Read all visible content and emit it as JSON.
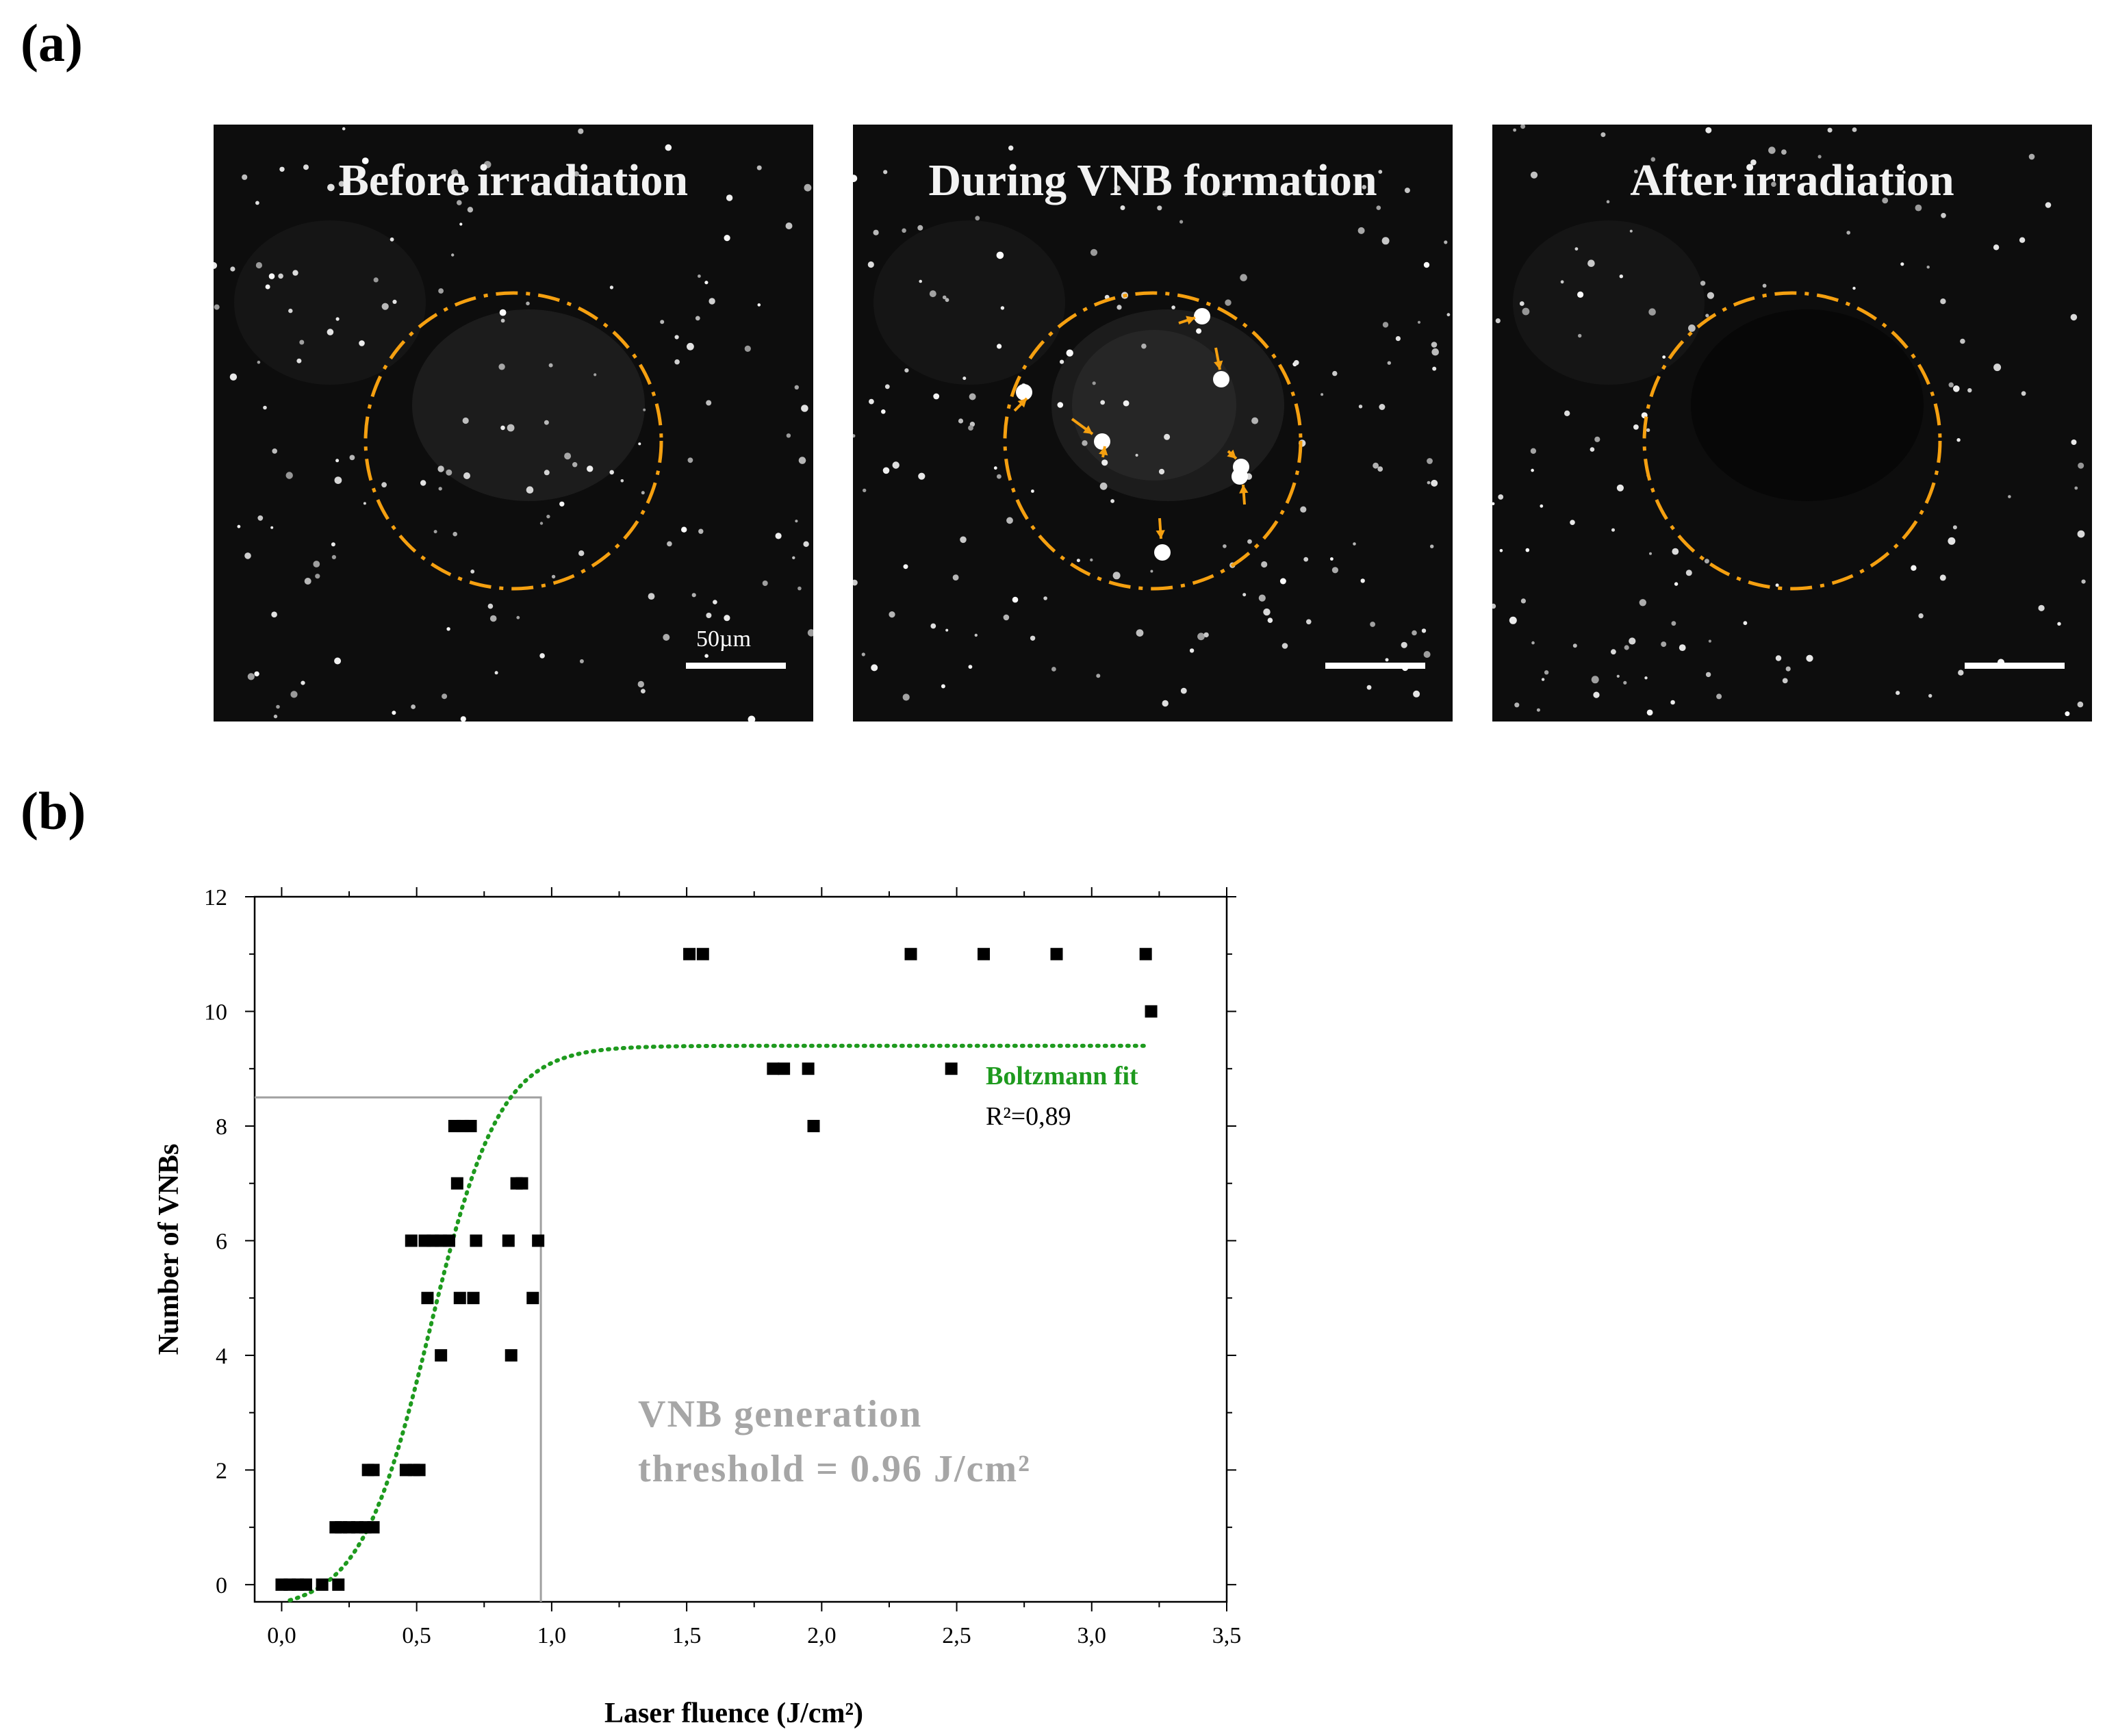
{
  "panel_labels": {
    "a": "(a)",
    "b": "(b)"
  },
  "colors": {
    "circle": "#f5a010",
    "fit": "#1e9a1e",
    "threshold_text": "#a6a6a6",
    "threshold_line": "#a0a0a0",
    "points": "#000000"
  },
  "micrographs": [
    {
      "title": "Before irradiation",
      "scale_label": "50µm"
    },
    {
      "title": "During VNB formation",
      "scale_label": ""
    },
    {
      "title": "After irradiation",
      "scale_label": ""
    }
  ],
  "chart_data": {
    "type": "scatter",
    "xlabel": "Laser fluence (J/cm²)",
    "ylabel": "Number of VNBs",
    "xlim": [
      -0.1,
      3.5
    ],
    "ylim": [
      -0.3,
      12
    ],
    "x_ticks": [
      0.0,
      0.5,
      1.0,
      1.5,
      2.0,
      2.5,
      3.0,
      3.5
    ],
    "x_tick_labels": [
      "0,0",
      "0,5",
      "1,0",
      "1,5",
      "2,0",
      "2,5",
      "3,0",
      "3,5"
    ],
    "y_ticks": [
      0,
      2,
      4,
      6,
      8,
      10,
      12
    ],
    "y_tick_labels": [
      "0",
      "2",
      "4",
      "6",
      "8",
      "10",
      "12"
    ],
    "points": [
      [
        0.0,
        0
      ],
      [
        0.03,
        0
      ],
      [
        0.06,
        0
      ],
      [
        0.09,
        0
      ],
      [
        0.15,
        0
      ],
      [
        0.21,
        0
      ],
      [
        0.2,
        1
      ],
      [
        0.22,
        1
      ],
      [
        0.25,
        1
      ],
      [
        0.28,
        1
      ],
      [
        0.31,
        1
      ],
      [
        0.34,
        1
      ],
      [
        0.32,
        2
      ],
      [
        0.34,
        2
      ],
      [
        0.46,
        2
      ],
      [
        0.49,
        2
      ],
      [
        0.51,
        2
      ],
      [
        0.48,
        6
      ],
      [
        0.53,
        6
      ],
      [
        0.56,
        6
      ],
      [
        0.59,
        6
      ],
      [
        0.62,
        6
      ],
      [
        0.72,
        6
      ],
      [
        0.84,
        6
      ],
      [
        0.95,
        6
      ],
      [
        0.54,
        5
      ],
      [
        0.66,
        5
      ],
      [
        0.71,
        5
      ],
      [
        0.93,
        5
      ],
      [
        0.59,
        4
      ],
      [
        0.85,
        4
      ],
      [
        0.65,
        7
      ],
      [
        0.87,
        7
      ],
      [
        0.89,
        7
      ],
      [
        0.64,
        8
      ],
      [
        0.67,
        8
      ],
      [
        0.7,
        8
      ],
      [
        1.51,
        11
      ],
      [
        1.56,
        11
      ],
      [
        2.33,
        11
      ],
      [
        2.6,
        11
      ],
      [
        2.87,
        11
      ],
      [
        3.2,
        11
      ],
      [
        1.82,
        9
      ],
      [
        1.86,
        9
      ],
      [
        1.95,
        9
      ],
      [
        2.48,
        9
      ],
      [
        1.97,
        8
      ],
      [
        3.22,
        10
      ]
    ],
    "fit": {
      "name": "Boltzmann fit",
      "model": "Boltzmann",
      "A1": -0.45,
      "A2": 9.4,
      "x0": 0.55,
      "dx": 0.13,
      "x_range": [
        0.03,
        3.2
      ]
    },
    "r_squared_label": "R²=0,89",
    "threshold": {
      "x": 0.96,
      "y": 8.5,
      "label_line1": "VNB generation",
      "label_line2": "threshold = 0.96 J/cm²"
    }
  }
}
